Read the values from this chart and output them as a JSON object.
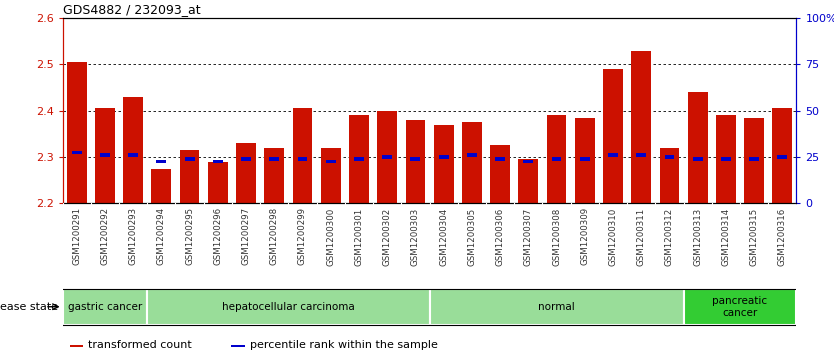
{
  "title": "GDS4882 / 232093_at",
  "samples": [
    "GSM1200291",
    "GSM1200292",
    "GSM1200293",
    "GSM1200294",
    "GSM1200295",
    "GSM1200296",
    "GSM1200297",
    "GSM1200298",
    "GSM1200299",
    "GSM1200300",
    "GSM1200301",
    "GSM1200302",
    "GSM1200303",
    "GSM1200304",
    "GSM1200305",
    "GSM1200306",
    "GSM1200307",
    "GSM1200308",
    "GSM1200309",
    "GSM1200310",
    "GSM1200311",
    "GSM1200312",
    "GSM1200313",
    "GSM1200314",
    "GSM1200315",
    "GSM1200316"
  ],
  "bar_values": [
    2.505,
    2.405,
    2.43,
    2.275,
    2.315,
    2.29,
    2.33,
    2.32,
    2.405,
    2.32,
    2.39,
    2.4,
    2.38,
    2.37,
    2.375,
    2.325,
    2.295,
    2.39,
    2.385,
    2.49,
    2.53,
    2.32,
    2.44,
    2.39,
    2.385,
    2.405
  ],
  "percentile_values": [
    2.31,
    2.305,
    2.305,
    2.29,
    2.295,
    2.29,
    2.295,
    2.295,
    2.295,
    2.29,
    2.295,
    2.3,
    2.295,
    2.3,
    2.305,
    2.295,
    2.29,
    2.295,
    2.295,
    2.305,
    2.305,
    2.3,
    2.295,
    2.295,
    2.295,
    2.3
  ],
  "ylim_min": 2.2,
  "ylim_max": 2.6,
  "yticks_left": [
    2.2,
    2.3,
    2.4,
    2.5,
    2.6
  ],
  "yticks_right_vals": [
    0,
    25,
    50,
    75,
    100
  ],
  "yticks_right_labels": [
    "0",
    "25",
    "50",
    "75",
    "100%"
  ],
  "bar_color": "#cc1100",
  "percentile_color": "#0000cc",
  "grid_color": "#000000",
  "disease_groups": [
    {
      "label": "gastric cancer",
      "start": 0,
      "end": 3,
      "color": "#99dd99"
    },
    {
      "label": "hepatocellular carcinoma",
      "start": 3,
      "end": 13,
      "color": "#99dd99"
    },
    {
      "label": "normal",
      "start": 13,
      "end": 22,
      "color": "#99dd99"
    },
    {
      "label": "pancreatic\ncancer",
      "start": 22,
      "end": 26,
      "color": "#33cc33"
    }
  ],
  "disease_state_label": "disease state",
  "legend_items": [
    {
      "color": "#cc1100",
      "label": "transformed count"
    },
    {
      "color": "#0000cc",
      "label": "percentile rank within the sample"
    }
  ],
  "tick_label_color": "#333333",
  "left_axis_color": "#cc1100",
  "right_axis_color": "#0000cc",
  "xtick_bg_color": "#cccccc",
  "figsize": [
    8.34,
    3.63
  ],
  "dpi": 100
}
